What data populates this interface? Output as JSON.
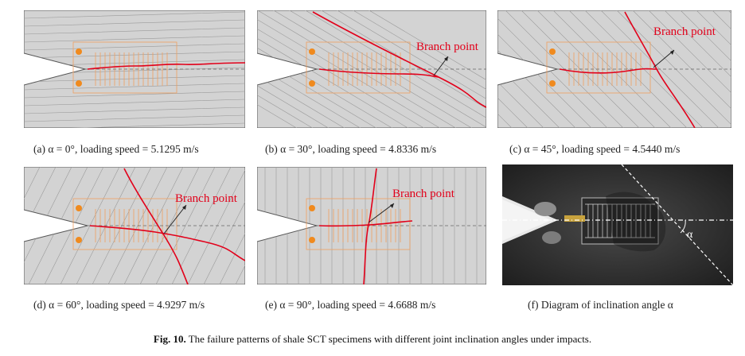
{
  "panels": [
    {
      "id": "a",
      "caption": "(a) α = 0°, loading speed = 5.1295 m/s",
      "branch_label": ""
    },
    {
      "id": "b",
      "caption": "(b) α = 30°, loading speed = 4.8336 m/s",
      "branch_label": "Branch point"
    },
    {
      "id": "c",
      "caption": "(c) α = 45°, loading speed = 4.5440 m/s",
      "branch_label": "Branch point"
    },
    {
      "id": "d",
      "caption": "(d) α = 60°, loading speed = 4.9297 m/s",
      "branch_label": "Branch point"
    },
    {
      "id": "e",
      "caption": "(e) α = 90°, loading speed = 4.6688 m/s",
      "branch_label": "Branch point"
    },
    {
      "id": "f",
      "caption": "(f) Diagram of inclination angle α",
      "alpha_label": "α"
    }
  ],
  "figure_caption": {
    "number": "Fig. 10.",
    "text": " The failure patterns of shale SCT specimens with different joint inclination angles under impacts."
  },
  "colors": {
    "crack": "#e2001a",
    "gauge": "#f0a060",
    "dot": "#f08a1e",
    "specimen": "#d3d3d3",
    "joint": "#9a9a9a"
  }
}
